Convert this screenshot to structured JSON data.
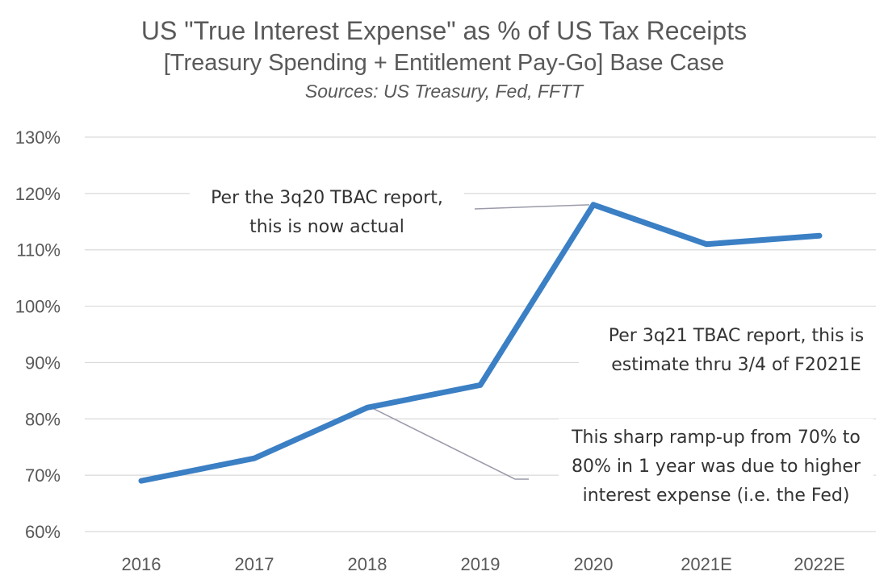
{
  "chart_data": {
    "type": "line",
    "title": "US \"True Interest Expense\" as % of US Tax Receipts",
    "subtitle": "[Treasury Spending + Entitlement Pay-Go] Base Case",
    "source": "Sources: US Treasury, Fed, FFTT",
    "categories": [
      "2016",
      "2017",
      "2018",
      "2019",
      "2020",
      "2021E",
      "2022E"
    ],
    "series": [
      {
        "values": [
          69,
          73,
          82,
          86,
          118,
          111,
          112.5
        ],
        "color": "#3B7FC4"
      }
    ],
    "ylim": [
      60,
      130
    ],
    "yticks": [
      "60%",
      "70%",
      "80%",
      "90%",
      "100%",
      "110%",
      "120%",
      "130%"
    ],
    "grid": true,
    "annotations": [
      {
        "lines": [
          "Per the 3q20 TBAC report,",
          "this is now actual"
        ],
        "points_to": "2020"
      },
      {
        "lines": [
          "Per 3q21 TBAC report, this is",
          "estimate thru 3/4 of F2021E"
        ],
        "points_to": "2021E"
      },
      {
        "lines": [
          "This sharp ramp-up from 70% to",
          "80% in 1 year was due to higher",
          "interest expense (i.e. the Fed)"
        ],
        "points_to": "2018"
      }
    ]
  }
}
